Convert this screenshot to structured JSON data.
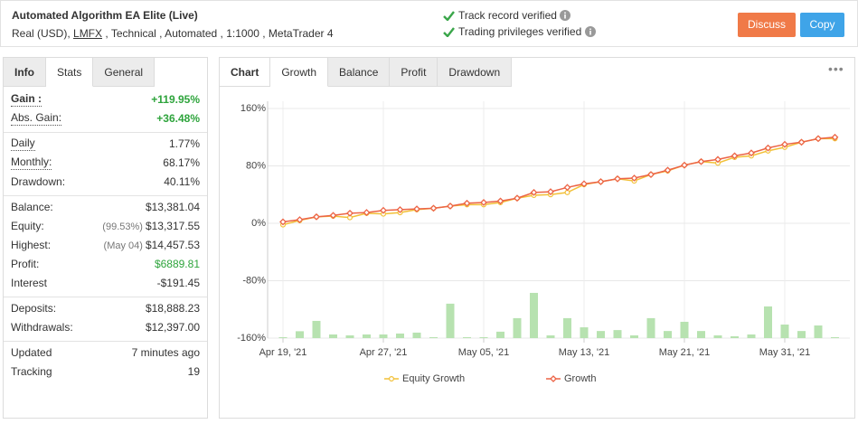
{
  "header": {
    "title": "Automated Algorithm EA Elite (Live)",
    "account_prefix": "Real (USD), ",
    "broker": "LMFX",
    "account_suffix": " , Technical , Automated , 1:1000 , MetaTrader 4",
    "verifications": [
      "Track record verified",
      "Trading privileges verified"
    ],
    "buttons": [
      "Discuss",
      "Copy"
    ]
  },
  "stats_panel": {
    "tabs": [
      "Info",
      "Stats",
      "General"
    ],
    "active_tab": 1,
    "groups": [
      [
        {
          "label": "Gain :",
          "value": "+119.95%",
          "color": "#2ea43c"
        },
        {
          "label": "Abs. Gain:",
          "value": "+36.48%",
          "color": "#2ea43c"
        }
      ],
      [
        {
          "label": "Daily",
          "value": "1.77%"
        },
        {
          "label": "Monthly:",
          "value": "68.17%"
        },
        {
          "label": "Drawdown:",
          "value": "40.11%"
        }
      ],
      [
        {
          "label": "Balance:",
          "value": "$13,381.04"
        },
        {
          "label": "Equity:",
          "note": "(99.53%)",
          "value": "$13,317.55"
        },
        {
          "label": "Highest:",
          "note": "(May 04)",
          "value": "$14,457.53"
        },
        {
          "label": "Profit:",
          "value": "$6889.81",
          "color": "#2ea43c"
        },
        {
          "label": "Interest",
          "value": "-$191.45"
        }
      ],
      [
        {
          "label": "Deposits:",
          "value": "$18,888.23"
        },
        {
          "label": "Withdrawals:",
          "value": "$12,397.00"
        }
      ],
      [
        {
          "label": "Updated",
          "value": "7 minutes ago"
        },
        {
          "label": "Tracking",
          "value": "19"
        }
      ]
    ]
  },
  "chart_panel": {
    "tabs": [
      "Chart",
      "Growth",
      "Balance",
      "Profit",
      "Drawdown"
    ],
    "active_tab": 1
  },
  "chart_data": {
    "type": "line",
    "categories": [
      "Apr 19, '21",
      null,
      null,
      null,
      null,
      null,
      "Apr 27, '21",
      null,
      null,
      null,
      null,
      null,
      "May 05, '21",
      null,
      null,
      null,
      null,
      null,
      "May 13, '21",
      null,
      null,
      null,
      null,
      null,
      "May 21, '21",
      null,
      null,
      null,
      null,
      null,
      "May 31, '21",
      null,
      null,
      null
    ],
    "series": [
      {
        "name": "Equity Growth",
        "color": "#f2c037",
        "marker": "circle",
        "values": [
          -2,
          4,
          9,
          10,
          8,
          14,
          13,
          15,
          19,
          21,
          24,
          26,
          26,
          29,
          35,
          39,
          40,
          43,
          54,
          58,
          62,
          59,
          68,
          73,
          81,
          86,
          84,
          92,
          94,
          101,
          106,
          113,
          118,
          118
        ]
      },
      {
        "name": "Growth",
        "color": "#ec6446",
        "marker": "diamond",
        "values": [
          2,
          5,
          9,
          11,
          14,
          15,
          18,
          19,
          20,
          21,
          24,
          28,
          29,
          31,
          35,
          43,
          44,
          50,
          55,
          58,
          62,
          63,
          68,
          74,
          81,
          86,
          89,
          94,
          98,
          105,
          110,
          113,
          118,
          119.95
        ]
      }
    ],
    "bars": {
      "color": "#b7e2b0",
      "axis": "y2",
      "values": [
        0.4,
        3,
        7.5,
        1.6,
        1.2,
        1.6,
        1.6,
        2,
        2.4,
        0.4,
        15,
        0.4,
        0.4,
        2.8,
        8.7,
        19.7,
        1.2,
        8.7,
        4.7,
        3.1,
        3.5,
        1.2,
        8.7,
        3.1,
        7.1,
        3.1,
        1.2,
        0.8,
        1.6,
        13.8,
        5.9,
        3.1,
        5.5,
        0.4
      ]
    },
    "ylim": [
      -160,
      160
    ],
    "yticks": [
      {
        "value": -160,
        "label": "-160%"
      },
      {
        "value": -80,
        "label": "-80%"
      },
      {
        "value": 0,
        "label": "0%"
      },
      {
        "value": 80,
        "label": "80%"
      },
      {
        "value": 160,
        "label": "160%"
      }
    ],
    "y2lim": [
      0,
      100
    ],
    "grid": true,
    "legend": "bottom"
  }
}
